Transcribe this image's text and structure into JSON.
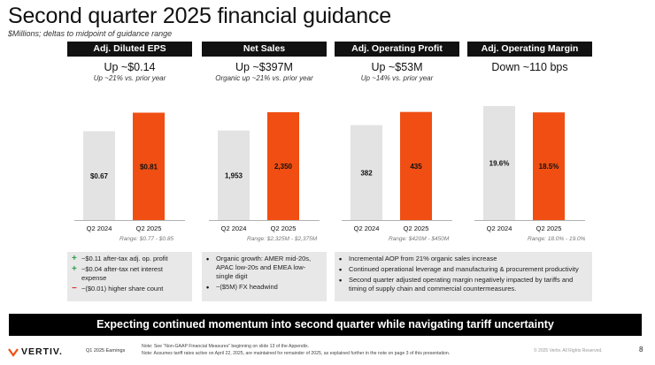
{
  "title": "Second quarter 2025 financial guidance",
  "subtitle": "$Millions; deltas to midpoint of guidance range",
  "colors": {
    "prior": "#e3e3e3",
    "current": "#f04e12",
    "header": "#111111",
    "banner": "#000000"
  },
  "panels": [
    {
      "header": "Adj. Diluted EPS",
      "headline": "Up ~$0.14",
      "sub": "Up ~21% vs. prior year",
      "range": "Range: $0.77 - $0.85"
    },
    {
      "header": "Net Sales",
      "headline": "Up ~$397M",
      "sub": "Organic up ~21% vs. prior year",
      "range": "Range: $2,325M - $2,375M"
    },
    {
      "header": "Adj. Operating Profit",
      "headline": "Up ~$53M",
      "sub": "Up ~14% vs. prior year",
      "range": "Range: $420M - $450M"
    },
    {
      "header": "Adj. Operating Margin",
      "headline": "Down ~110 bps",
      "sub": "",
      "range": "Range: 18.0% - 19.0%"
    }
  ],
  "chart_data": [
    {
      "type": "bar",
      "title": "Adj. Diluted EPS",
      "categories": [
        "Q2 2024",
        "Q2 2025"
      ],
      "values": [
        0.67,
        0.81
      ],
      "labels": [
        "$0.67",
        "$0.81"
      ],
      "ylim": [
        0,
        0.9
      ]
    },
    {
      "type": "bar",
      "title": "Net Sales",
      "categories": [
        "Q2 2024",
        "Q2 2025"
      ],
      "values": [
        1953,
        2350
      ],
      "labels": [
        "1,953",
        "2,350"
      ],
      "ylim": [
        0,
        2600
      ]
    },
    {
      "type": "bar",
      "title": "Adj. Operating Profit",
      "categories": [
        "Q2 2024",
        "Q2 2025"
      ],
      "values": [
        382,
        435
      ],
      "labels": [
        "382",
        "435"
      ],
      "ylim": [
        0,
        480
      ]
    },
    {
      "type": "bar",
      "title": "Adj. Operating Margin",
      "categories": [
        "Q2 2024",
        "Q2 2025"
      ],
      "values": [
        19.6,
        18.5
      ],
      "labels": [
        "19.6%",
        "18.5%"
      ],
      "ylim": [
        0,
        20.5
      ]
    }
  ],
  "notes": {
    "eps": [
      {
        "marker": "+",
        "text": "~$0.11 after-tax adj. op. profit"
      },
      {
        "marker": "+",
        "text": "~$0.04 after-tax net interest expense"
      },
      {
        "marker": "−",
        "text": "~($0.01) higher share count"
      }
    ],
    "sales": [
      {
        "marker": "•",
        "text": "Organic growth: AMER mid-20s, APAC low-20s and EMEA low-single digit"
      },
      {
        "marker": "•",
        "text": "~($5M) FX headwind"
      }
    ],
    "profit": [
      {
        "marker": "•",
        "text": "Incremental AOP from 21% organic sales increase"
      },
      {
        "marker": "•",
        "text": "Continued operational leverage and manufacturing & procurement productivity"
      },
      {
        "marker": "•",
        "text": "Second quarter adjusted operating margin negatively impacted by tariffs and timing of supply chain and commercial countermeasures."
      }
    ]
  },
  "banner": "Expecting continued momentum into second quarter while navigating tariff uncertainty",
  "footer": {
    "logo": "VERTIV.",
    "label": "Q1 2025 Earnings",
    "note1": "Note: See “Non-GAAP Financial Measures” beginning on slide 13 of the Appendix.",
    "note2": "Note: Assumes tariff rates active on April 22, 2025, are maintained for remainder of 2025, as explained further in the note on page 3 of this presentation.",
    "copyright": "© 2025 Vertiv. All Rights Reserved.",
    "page": "8"
  }
}
